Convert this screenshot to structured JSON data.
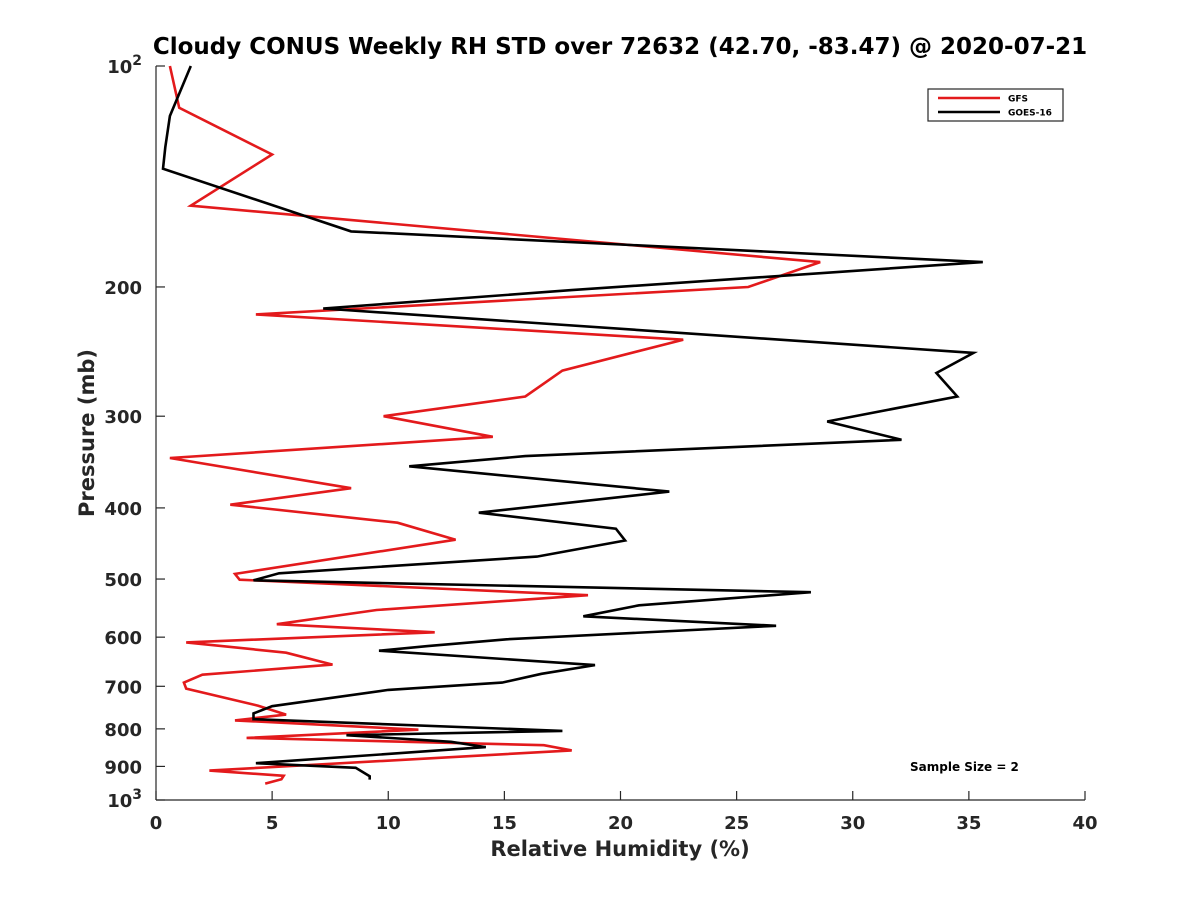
{
  "chart_data": {
    "type": "line",
    "title": "Cloudy CONUS Weekly RH STD over 72632 (42.70, -83.47) @ 2020-07-21",
    "xlabel": "Relative Humidity (%)",
    "ylabel": "Pressure (mb)",
    "xlim": [
      0,
      40
    ],
    "ylim": [
      100,
      1000
    ],
    "y_scale": "log",
    "y_reversed": true,
    "grid": false,
    "legend_position": "top-right",
    "x_ticks": [
      "0",
      "5",
      "10",
      "15",
      "20",
      "25",
      "30",
      "35",
      "40"
    ],
    "x_tick_values": [
      0,
      5,
      10,
      15,
      20,
      25,
      30,
      35,
      40
    ],
    "y_ticks": [
      {
        "value": 100,
        "base": "10",
        "exp": "2"
      },
      {
        "value": 200,
        "label": "200"
      },
      {
        "value": 300,
        "label": "300"
      },
      {
        "value": 400,
        "label": "400"
      },
      {
        "value": 500,
        "label": "500"
      },
      {
        "value": 600,
        "label": "600"
      },
      {
        "value": 700,
        "label": "700"
      },
      {
        "value": 800,
        "label": "800"
      },
      {
        "value": 900,
        "label": "900"
      },
      {
        "value": 1000,
        "base": "10",
        "exp": "3"
      }
    ],
    "series": [
      {
        "name": "GFS",
        "color": "#e31a1c",
        "points": [
          [
            0.6,
            100
          ],
          [
            1.0,
            114
          ],
          [
            5.0,
            132
          ],
          [
            1.5,
            155
          ],
          [
            28.6,
            185
          ],
          [
            25.5,
            200
          ],
          [
            4.3,
            218
          ],
          [
            22.7,
            236
          ],
          [
            17.5,
            260
          ],
          [
            15.9,
            282
          ],
          [
            9.8,
            300
          ],
          [
            14.5,
            320
          ],
          [
            0.6,
            342
          ],
          [
            8.4,
            376
          ],
          [
            3.2,
            396
          ],
          [
            10.4,
            419
          ],
          [
            12.9,
            442
          ],
          [
            3.4,
            492
          ],
          [
            3.6,
            501
          ],
          [
            18.6,
            526
          ],
          [
            9.5,
            551
          ],
          [
            5.2,
            576
          ],
          [
            12.0,
            591
          ],
          [
            1.3,
            610
          ],
          [
            5.6,
            630
          ],
          [
            7.6,
            654
          ],
          [
            2.0,
            675
          ],
          [
            1.2,
            692
          ],
          [
            1.3,
            705
          ],
          [
            4.4,
            744
          ],
          [
            5.6,
            765
          ],
          [
            3.4,
            779
          ],
          [
            11.3,
            802
          ],
          [
            3.9,
            823
          ],
          [
            16.7,
            842
          ],
          [
            17.9,
            856
          ],
          [
            2.3,
            912
          ],
          [
            5.5,
            927
          ],
          [
            5.4,
            937
          ],
          [
            4.7,
            950
          ]
        ]
      },
      {
        "name": "GOES-16",
        "color": "#000000",
        "points": [
          [
            1.5,
            100
          ],
          [
            0.6,
            117
          ],
          [
            0.4,
            129
          ],
          [
            0.3,
            138
          ],
          [
            8.4,
            168
          ],
          [
            35.6,
            185
          ],
          [
            17.9,
            202
          ],
          [
            7.2,
            214
          ],
          [
            35.2,
            246
          ],
          [
            33.6,
            262
          ],
          [
            34.5,
            282
          ],
          [
            28.9,
            305
          ],
          [
            32.1,
            323
          ],
          [
            15.9,
            340
          ],
          [
            10.9,
            351
          ],
          [
            22.1,
            380
          ],
          [
            13.9,
            406
          ],
          [
            19.8,
            427
          ],
          [
            20.2,
            443
          ],
          [
            16.4,
            466
          ],
          [
            5.3,
            491
          ],
          [
            4.2,
            502
          ],
          [
            28.2,
            521
          ],
          [
            20.8,
            543
          ],
          [
            18.4,
            562
          ],
          [
            26.7,
            579
          ],
          [
            15.1,
            604
          ],
          [
            11.7,
            617
          ],
          [
            9.6,
            626
          ],
          [
            18.9,
            655
          ],
          [
            16.6,
            673
          ],
          [
            14.9,
            692
          ],
          [
            10.0,
            708
          ],
          [
            5.0,
            745
          ],
          [
            4.2,
            762
          ],
          [
            4.2,
            776
          ],
          [
            17.5,
            805
          ],
          [
            8.2,
            816
          ],
          [
            12.7,
            833
          ],
          [
            14.2,
            847
          ],
          [
            4.3,
            891
          ],
          [
            8.6,
            904
          ],
          [
            9.2,
            928
          ],
          [
            9.2,
            938
          ]
        ]
      }
    ],
    "annotation": "Sample Size = 2"
  }
}
